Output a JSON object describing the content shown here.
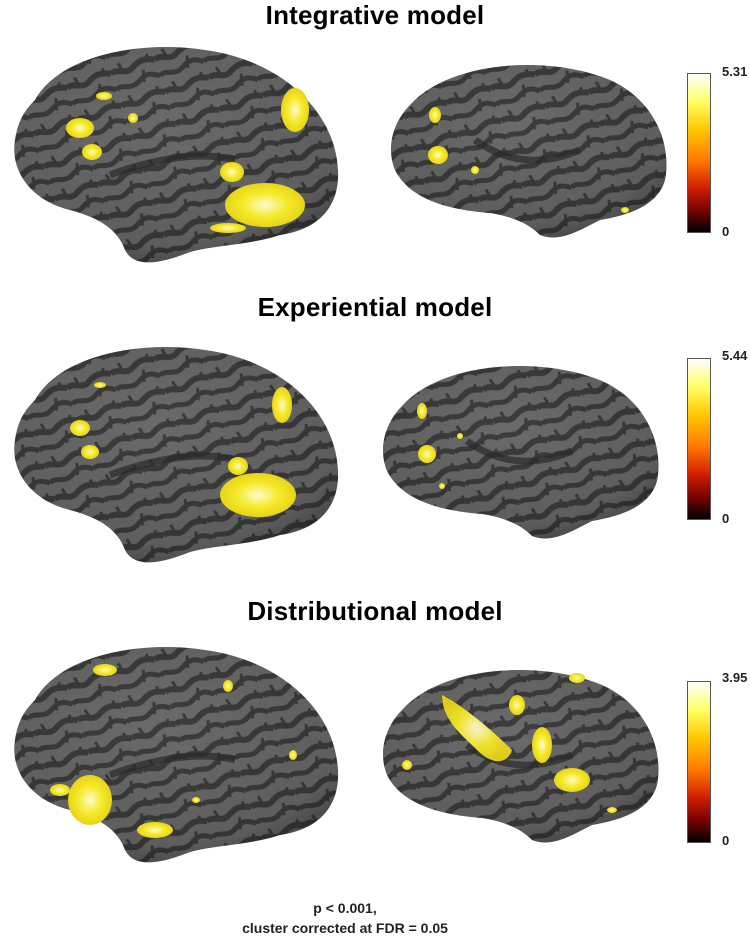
{
  "panels": [
    {
      "title": "Integrative model",
      "colorbar": {
        "max": "5.31",
        "min": "0"
      }
    },
    {
      "title": "Experiential model",
      "colorbar": {
        "max": "5.44",
        "min": "0"
      }
    },
    {
      "title": "Distributional model",
      "colorbar": {
        "max": "3.95",
        "min": "0"
      }
    }
  ],
  "footnote": {
    "line1": "p < 0.001,",
    "line2": "cluster corrected at FDR = 0.05"
  },
  "colors": {
    "cortex_dark": "#3a3a3a",
    "cortex_light": "#6e6e6e",
    "activation": "#f2e51c",
    "activation_peak": "#fffbd0"
  },
  "colormap": [
    "#ffffff",
    "#ffff60",
    "#ffc800",
    "#ff7800",
    "#d21e00",
    "#6a0000",
    "#000000"
  ]
}
